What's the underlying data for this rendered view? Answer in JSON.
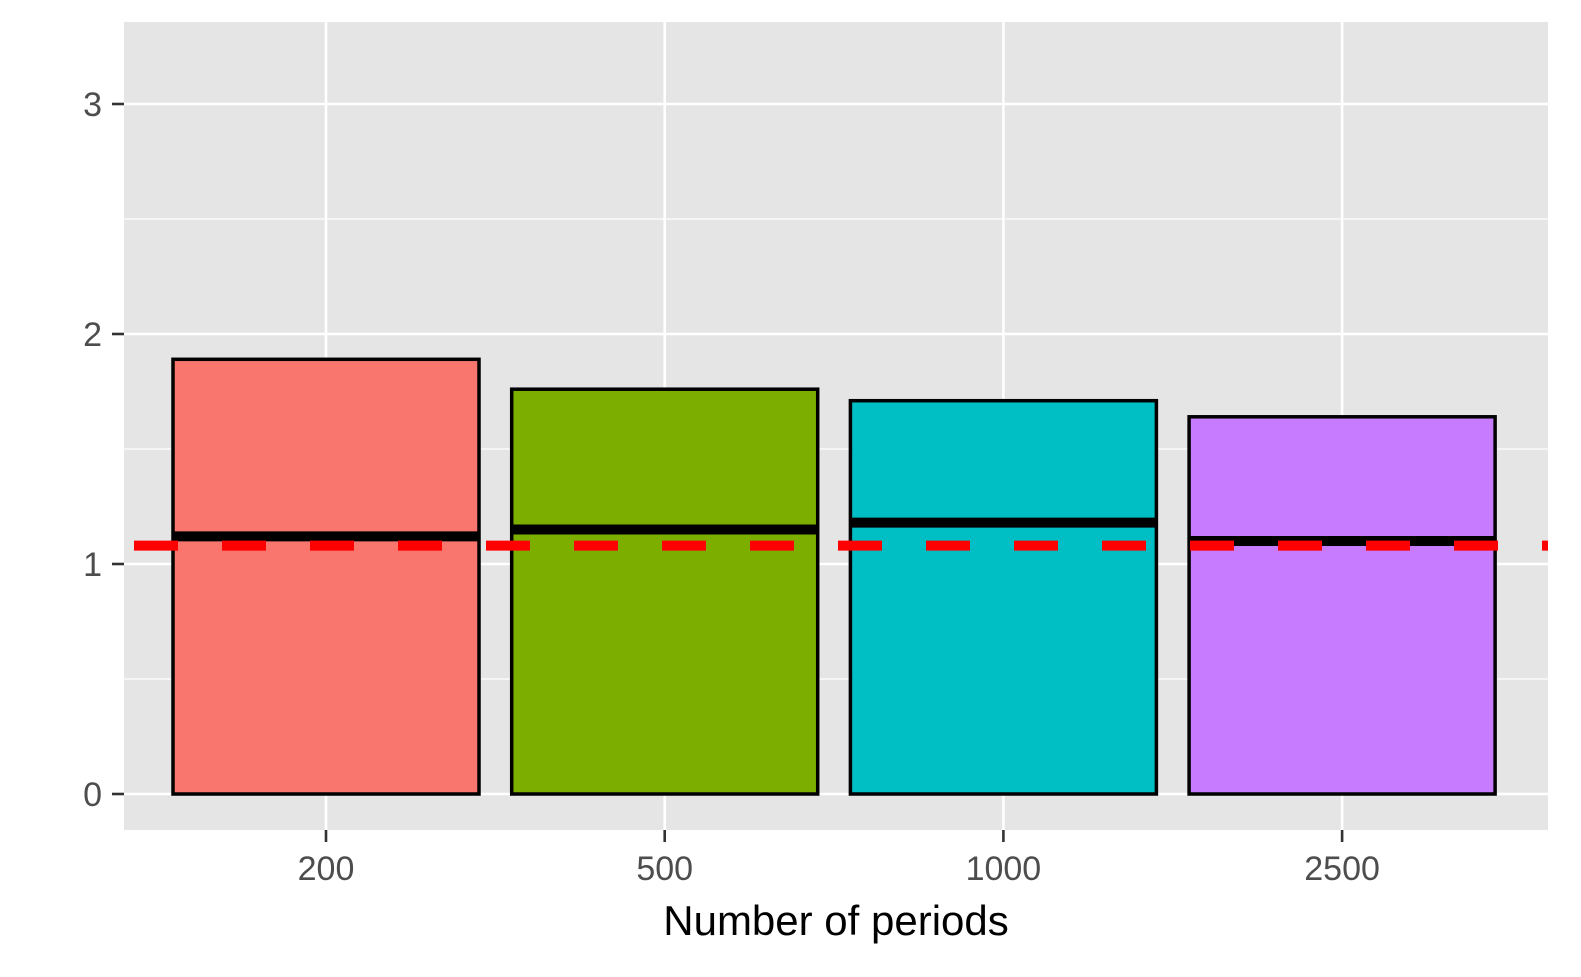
{
  "chart_data": {
    "type": "bar",
    "categories": [
      "200",
      "500",
      "1000",
      "2500"
    ],
    "values": [
      1.89,
      1.76,
      1.71,
      1.64
    ],
    "median_lines": [
      1.12,
      1.15,
      1.18,
      1.1
    ],
    "reference_line": 1.08,
    "xlabel": "Number of periods",
    "ylabel": "",
    "ylim": [
      -0.15,
      3.36
    ],
    "yticks": [
      "0",
      "1",
      "2",
      "3"
    ],
    "ytick_values": [
      0,
      1,
      2,
      3
    ],
    "grid": true,
    "colors": {
      "bars": [
        "#F8766D",
        "#7CAE00",
        "#00BFC4",
        "#C77CFF"
      ],
      "panel_background": "#E5E5E5",
      "grid": "#FFFFFF",
      "bar_outline": "#000000",
      "reference_line": "#FF0000"
    }
  }
}
